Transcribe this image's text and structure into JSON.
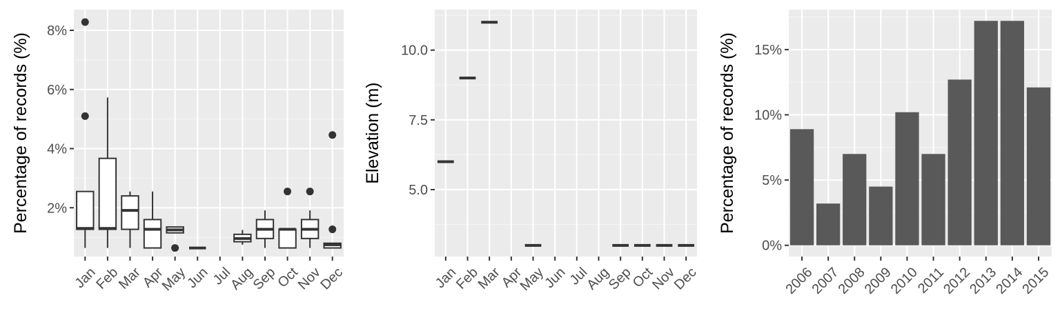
{
  "colors": {
    "panel": "#ebebeb",
    "grid_major": "#ffffff",
    "grid_minor": "#f5f5f5",
    "box_stroke": "#333333",
    "bar_fill": "#595959",
    "tick_text": "#4d4d4d",
    "title_text": "#000000"
  },
  "chart_data": [
    {
      "type": "box",
      "ylabel": "Percentage of records (%)",
      "categories": [
        "Jan",
        "Feb",
        "Mar",
        "Apr",
        "May",
        "Jun",
        "Jul",
        "Aug",
        "Sep",
        "Oct",
        "Nov",
        "Dec"
      ],
      "y_ticks": [
        2,
        4,
        6,
        8
      ],
      "y_tick_labels": [
        "2%",
        "4%",
        "6%",
        "8%"
      ],
      "ylim": [
        0.35,
        8.7
      ],
      "boxes": [
        {
          "category": "Jan",
          "min": 0.64,
          "q1": 1.27,
          "median": 1.3,
          "q3": 2.55,
          "max": 2.55,
          "outliers": [
            5.1,
            8.28
          ]
        },
        {
          "category": "Feb",
          "min": 0.64,
          "q1": 1.27,
          "median": 1.3,
          "q3": 3.67,
          "max": 5.73,
          "outliers": []
        },
        {
          "category": "Mar",
          "min": 0.64,
          "q1": 1.27,
          "median": 1.91,
          "q3": 2.4,
          "max": 2.55,
          "outliers": []
        },
        {
          "category": "Apr",
          "min": 0.64,
          "q1": 0.64,
          "median": 1.27,
          "q3": 1.6,
          "max": 2.55,
          "outliers": []
        },
        {
          "category": "May",
          "min": 1.15,
          "q1": 1.15,
          "median": 1.25,
          "q3": 1.35,
          "max": 1.35,
          "outliers": [
            0.64
          ]
        },
        {
          "category": "Jun",
          "min": 0.64,
          "q1": 0.64,
          "median": 0.64,
          "q3": 0.64,
          "max": 0.64,
          "outliers": []
        },
        {
          "category": "Aug",
          "min": 0.75,
          "q1": 0.85,
          "median": 0.96,
          "q3": 1.1,
          "max": 1.25,
          "outliers": []
        },
        {
          "category": "Sep",
          "min": 0.64,
          "q1": 0.96,
          "median": 1.27,
          "q3": 1.6,
          "max": 1.91,
          "outliers": []
        },
        {
          "category": "Oct",
          "min": 0.64,
          "q1": 0.64,
          "median": 1.27,
          "q3": 1.27,
          "max": 1.27,
          "outliers": [
            2.55
          ]
        },
        {
          "category": "Nov",
          "min": 0.64,
          "q1": 0.96,
          "median": 1.27,
          "q3": 1.6,
          "max": 1.91,
          "outliers": [
            2.55
          ]
        },
        {
          "category": "Dec",
          "min": 0.64,
          "q1": 0.64,
          "median": 0.75,
          "q3": 0.8,
          "max": 0.8,
          "outliers": [
            1.27,
            4.46
          ]
        }
      ]
    },
    {
      "type": "box",
      "ylabel": "Elevation (m)",
      "categories": [
        "Jan",
        "Feb",
        "Mar",
        "Apr",
        "May",
        "Jun",
        "Jul",
        "Aug",
        "Sep",
        "Oct",
        "Nov",
        "Dec"
      ],
      "y_ticks": [
        5.0,
        7.5,
        10.0
      ],
      "y_tick_labels": [
        "5.0",
        "7.5",
        "10.0"
      ],
      "ylim": [
        2.6,
        11.45
      ],
      "boxes": [
        {
          "category": "Jan",
          "min": 6,
          "q1": 6,
          "median": 6,
          "q3": 6,
          "max": 6,
          "outliers": []
        },
        {
          "category": "Feb",
          "min": 9,
          "q1": 9,
          "median": 9,
          "q3": 9,
          "max": 9,
          "outliers": []
        },
        {
          "category": "Mar",
          "min": 11,
          "q1": 11,
          "median": 11,
          "q3": 11,
          "max": 11,
          "outliers": []
        },
        {
          "category": "May",
          "min": 3,
          "q1": 3,
          "median": 3,
          "q3": 3,
          "max": 3,
          "outliers": []
        },
        {
          "category": "Sep",
          "min": 3,
          "q1": 3,
          "median": 3,
          "q3": 3,
          "max": 3,
          "outliers": []
        },
        {
          "category": "Oct",
          "min": 3,
          "q1": 3,
          "median": 3,
          "q3": 3,
          "max": 3,
          "outliers": []
        },
        {
          "category": "Nov",
          "min": 3,
          "q1": 3,
          "median": 3,
          "q3": 3,
          "max": 3,
          "outliers": []
        },
        {
          "category": "Dec",
          "min": 3,
          "q1": 3,
          "median": 3,
          "q3": 3,
          "max": 3,
          "outliers": []
        }
      ]
    },
    {
      "type": "bar",
      "ylabel": "Percentage of records (%)",
      "categories": [
        "2006",
        "2007",
        "2008",
        "2009",
        "2010",
        "2011",
        "2012",
        "2013",
        "2014",
        "2015"
      ],
      "values": [
        8.9,
        3.2,
        7.0,
        4.5,
        10.2,
        7.0,
        12.7,
        17.2,
        17.2,
        12.1
      ],
      "y_ticks": [
        0,
        5,
        10,
        15
      ],
      "y_tick_labels": [
        "0%",
        "5%",
        "10%",
        "15%"
      ],
      "ylim": [
        -0.86,
        18.06
      ]
    }
  ]
}
